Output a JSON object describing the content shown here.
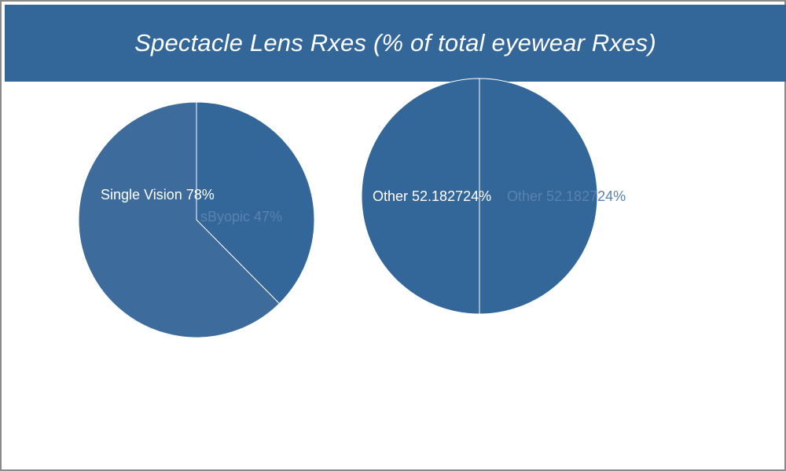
{
  "title": "Spectacle Lens Rxes (% of total eyewear Rxes)",
  "colors": {
    "header_bg": "#336699",
    "slice_primary": "#336699",
    "slice_secondary": "#3D6C9C",
    "label_white": "#FFFFFF",
    "label_faint": "#5A82AE",
    "frame_border": "#8A8A8A"
  },
  "chart_data": [
    {
      "type": "pie",
      "title": "",
      "slices": [
        {
          "label": "sByopic",
          "value": 47,
          "display": "sByopic 47%",
          "color": "#336699",
          "label_style": "faint"
        },
        {
          "label": "Single Vision",
          "value": 78,
          "display": "Single Vision 78%",
          "color": "#3D6C9C",
          "label_style": "white"
        }
      ],
      "start_angle_deg": 90,
      "direction": "clockwise"
    },
    {
      "type": "pie",
      "title": "",
      "slices": [
        {
          "label": "Other",
          "value": 52.182724,
          "display": "Other 52.182724%",
          "color": "#336699",
          "label_style": "white"
        },
        {
          "label": "Other",
          "value": 52.182724,
          "display": "Other 52.182724%",
          "color": "#336699",
          "label_style": "faint"
        }
      ],
      "start_angle_deg": 90,
      "direction": "clockwise"
    }
  ]
}
